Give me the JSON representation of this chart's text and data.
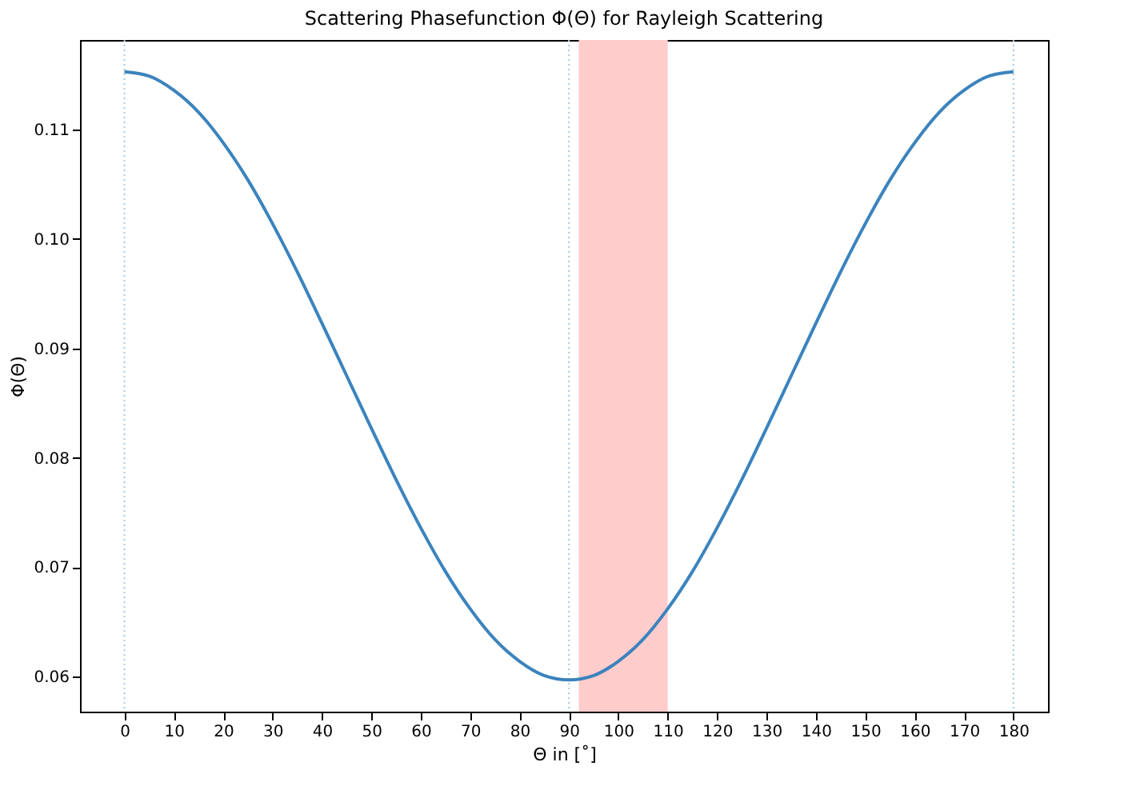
{
  "chart_data": {
    "type": "line",
    "title": "Scattering Phasefunction Φ(Θ) for Rayleigh Scattering",
    "xlabel": "Θ in [˚]",
    "ylabel": "Φ(Θ)",
    "x": [
      0,
      5,
      10,
      15,
      20,
      25,
      30,
      35,
      40,
      45,
      50,
      55,
      60,
      65,
      70,
      75,
      80,
      85,
      90,
      95,
      100,
      105,
      110,
      115,
      120,
      125,
      130,
      135,
      140,
      145,
      150,
      155,
      160,
      165,
      170,
      175,
      180
    ],
    "series": [
      {
        "color": "#3b83bd",
        "values": [
          0.1153,
          0.1149,
          0.1136,
          0.1116,
          0.1088,
          0.1054,
          0.1014,
          0.097,
          0.0923,
          0.0875,
          0.0827,
          0.078,
          0.0736,
          0.0696,
          0.0662,
          0.0634,
          0.0614,
          0.0601,
          0.0597,
          0.0601,
          0.0614,
          0.0634,
          0.0662,
          0.0696,
          0.0736,
          0.078,
          0.0827,
          0.0875,
          0.0923,
          0.097,
          0.1014,
          0.1054,
          0.1088,
          0.1116,
          0.1136,
          0.1149,
          0.1153
        ]
      }
    ],
    "xlim": [
      -9,
      187
    ],
    "xticks": [
      0,
      10,
      20,
      30,
      40,
      50,
      60,
      70,
      80,
      90,
      100,
      110,
      120,
      130,
      140,
      150,
      160,
      170,
      180
    ],
    "ylim": [
      0.0568,
      0.1182
    ],
    "yticks": [
      {
        "value": 0.06,
        "label": "0.06"
      },
      {
        "value": 0.07,
        "label": "0.07"
      },
      {
        "value": 0.08,
        "label": "0.08"
      },
      {
        "value": 0.09,
        "label": "0.09"
      },
      {
        "value": 0.1,
        "label": "0.10"
      },
      {
        "value": 0.11,
        "label": "0.11"
      }
    ],
    "ref_lines": [
      {
        "axis": "x",
        "value": 0,
        "color": "#a6c8e4",
        "line_style": "dotted"
      },
      {
        "axis": "x",
        "value": 90,
        "color": "#a6c8e4",
        "line_style": "dotted"
      },
      {
        "axis": "x",
        "value": 180,
        "color": "#a6c8e4",
        "line_style": "dotted"
      }
    ],
    "bands": [
      {
        "axis": "x",
        "from": 92,
        "to": 110,
        "color": "#ffcccc"
      }
    ],
    "grid": false,
    "marker": "none",
    "line_style": "solid"
  }
}
